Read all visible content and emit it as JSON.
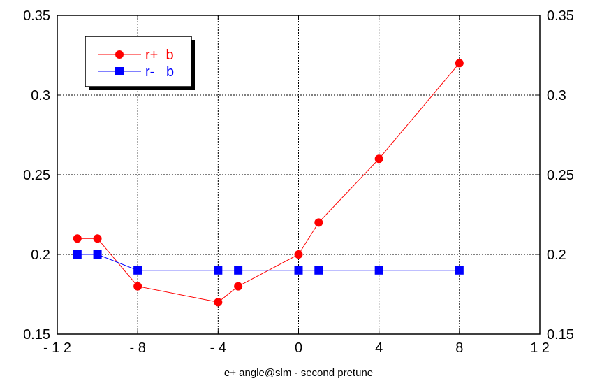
{
  "chart_data": {
    "type": "line",
    "title": "",
    "xlabel": "e+ angle@slm - second pretune",
    "ylabel": "",
    "xlim": [
      -12,
      12
    ],
    "ylim": [
      0.15,
      0.35
    ],
    "x_ticks": [
      -12,
      -8,
      -4,
      0,
      4,
      8,
      12
    ],
    "x_tick_labels": [
      "- 1 2",
      "- 8",
      "- 4",
      "0",
      "4",
      "8",
      "1 2"
    ],
    "y_ticks": [
      0.15,
      0.2,
      0.25,
      0.3,
      0.35
    ],
    "y_tick_labels": [
      "0.15",
      "0.2",
      "0.25",
      "0.3",
      "0.35"
    ],
    "grid": true,
    "legend_position": "top-left",
    "series": [
      {
        "name": "r+  b",
        "color": "#ff0000",
        "marker": "circle",
        "x": [
          -11,
          -10,
          -8,
          -4,
          -3,
          0,
          1,
          4,
          8
        ],
        "y": [
          0.21,
          0.21,
          0.18,
          0.17,
          0.18,
          0.2,
          0.22,
          0.26,
          0.32
        ]
      },
      {
        "name": "r-   b",
        "color": "#0000ff",
        "marker": "square",
        "x": [
          -11,
          -10,
          -8,
          -4,
          -3,
          0,
          1,
          4,
          8
        ],
        "y": [
          0.2,
          0.2,
          0.19,
          0.19,
          0.19,
          0.19,
          0.19,
          0.19,
          0.19
        ]
      }
    ]
  }
}
